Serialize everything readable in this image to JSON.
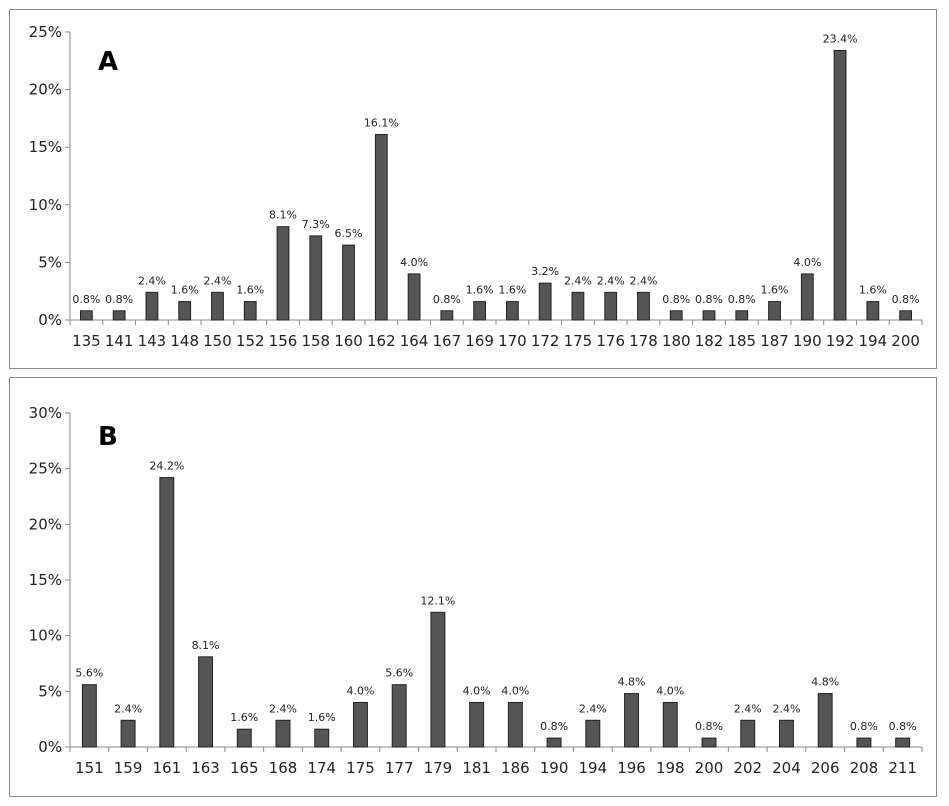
{
  "colors": {
    "bar_fill": "#555555",
    "bar_stroke": "#222222",
    "axis": "#8a8a8a"
  },
  "chart_data": [
    {
      "type": "bar",
      "title": "A",
      "xlabel": "",
      "ylabel": "",
      "ylim": [
        0,
        25
      ],
      "yticks": [
        "0%",
        "5%",
        "10%",
        "15%",
        "20%",
        "25%"
      ],
      "grid": false,
      "legend": "none",
      "categories": [
        "135",
        "141",
        "143",
        "148",
        "150",
        "152",
        "156",
        "158",
        "160",
        "162",
        "164",
        "167",
        "169",
        "170",
        "172",
        "175",
        "176",
        "178",
        "180",
        "182",
        "185",
        "187",
        "190",
        "192",
        "194",
        "200"
      ],
      "values": [
        0.8,
        0.8,
        2.4,
        1.6,
        2.4,
        1.6,
        8.1,
        7.3,
        6.5,
        16.1,
        4.0,
        0.8,
        1.6,
        1.6,
        3.2,
        2.4,
        2.4,
        2.4,
        0.8,
        0.8,
        0.8,
        1.6,
        4.0,
        23.4,
        1.6,
        0.8
      ],
      "labels": [
        "0.8%",
        "0.8%",
        "2.4%",
        "1.6%",
        "2.4%",
        "1.6%",
        "8.1%",
        "7.3%",
        "6.5%",
        "16.1%",
        "4.0%",
        "0.8%",
        "1.6%",
        "1.6%",
        "3.2%",
        "2.4%",
        "2.4%",
        "2.4%",
        "0.8%",
        "0.8%",
        "0.8%",
        "1.6%",
        "4.0%",
        "23.4%",
        "1.6%",
        "0.8%"
      ]
    },
    {
      "type": "bar",
      "title": "B",
      "xlabel": "",
      "ylabel": "",
      "ylim": [
        0,
        30
      ],
      "yticks": [
        "0%",
        "5%",
        "10%",
        "15%",
        "20%",
        "25%",
        "30%"
      ],
      "grid": false,
      "legend": "none",
      "categories": [
        "151",
        "159",
        "161",
        "163",
        "165",
        "168",
        "174",
        "175",
        "177",
        "179",
        "181",
        "186",
        "190",
        "194",
        "196",
        "198",
        "200",
        "202",
        "204",
        "206",
        "208",
        "211"
      ],
      "values": [
        5.6,
        2.4,
        24.2,
        8.1,
        1.6,
        2.4,
        1.6,
        4.0,
        5.6,
        12.1,
        4.0,
        4.0,
        0.8,
        2.4,
        4.8,
        4.0,
        0.8,
        2.4,
        2.4,
        4.8,
        0.8,
        0.8
      ],
      "labels": [
        "5.6%",
        "2.4%",
        "24.2%",
        "8.1%",
        "1.6%",
        "2.4%",
        "1.6%",
        "4.0%",
        "5.6%",
        "12.1%",
        "4.0%",
        "4.0%",
        "0.8%",
        "2.4%",
        "4.8%",
        "4.0%",
        "0.8%",
        "2.4%",
        "2.4%",
        "4.8%",
        "0.8%",
        "0.8%"
      ]
    }
  ]
}
